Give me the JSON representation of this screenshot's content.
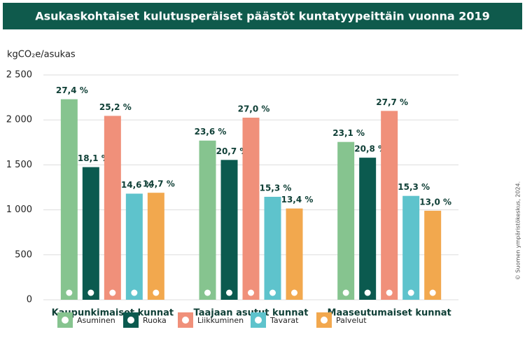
{
  "chart_data": {
    "type": "bar",
    "title": "Asukaskohtaiset kulutusperäiset päästöt kuntatyypeittäin vuonna 2019",
    "y_label": "kgCO₂e/asukas",
    "credit": "© Suomen ympäristökeskus, 2024.",
    "categories": [
      "Kaupunkimaiset kunnat",
      "Taajaan asutut kunnat",
      "Maaseutumaiset kunnat"
    ],
    "series": [
      {
        "name": "Asuminen",
        "color": "#86c48f",
        "values": [
          2230,
          1770,
          1755
        ],
        "share_labels": [
          "27,4 %",
          "23,6 %",
          "23,1 %"
        ]
      },
      {
        "name": "Ruoka",
        "color": "#0b5a4f",
        "values": [
          1475,
          1555,
          1580
        ],
        "share_labels": [
          "18,1 %",
          "20,7 %",
          "20,8 %"
        ]
      },
      {
        "name": "Liikkuminen",
        "color": "#f0907a",
        "values": [
          2045,
          2025,
          2100
        ],
        "share_labels": [
          "25,2 %",
          "27,0 %",
          "27,7 %"
        ]
      },
      {
        "name": "Tavarat",
        "color": "#5ec3cc",
        "values": [
          1180,
          1145,
          1155
        ],
        "share_labels": [
          "14,6 %",
          "15,3 %",
          "15,3 %"
        ]
      },
      {
        "name": "Palvelut",
        "color": "#f2a84e",
        "values": [
          1190,
          1015,
          990
        ],
        "share_labels": [
          "14,7 %",
          "13,4 %",
          "13,0 %"
        ]
      }
    ],
    "ylim": [
      0,
      2500
    ],
    "yticks": [
      0,
      500,
      {
        "value": 1000,
        "label": "1 000"
      },
      {
        "value": 1500,
        "label": "1 500"
      },
      {
        "value": 2000,
        "label": "2 000"
      },
      {
        "value": 2500,
        "label": "2 500"
      }
    ],
    "grid": true
  }
}
